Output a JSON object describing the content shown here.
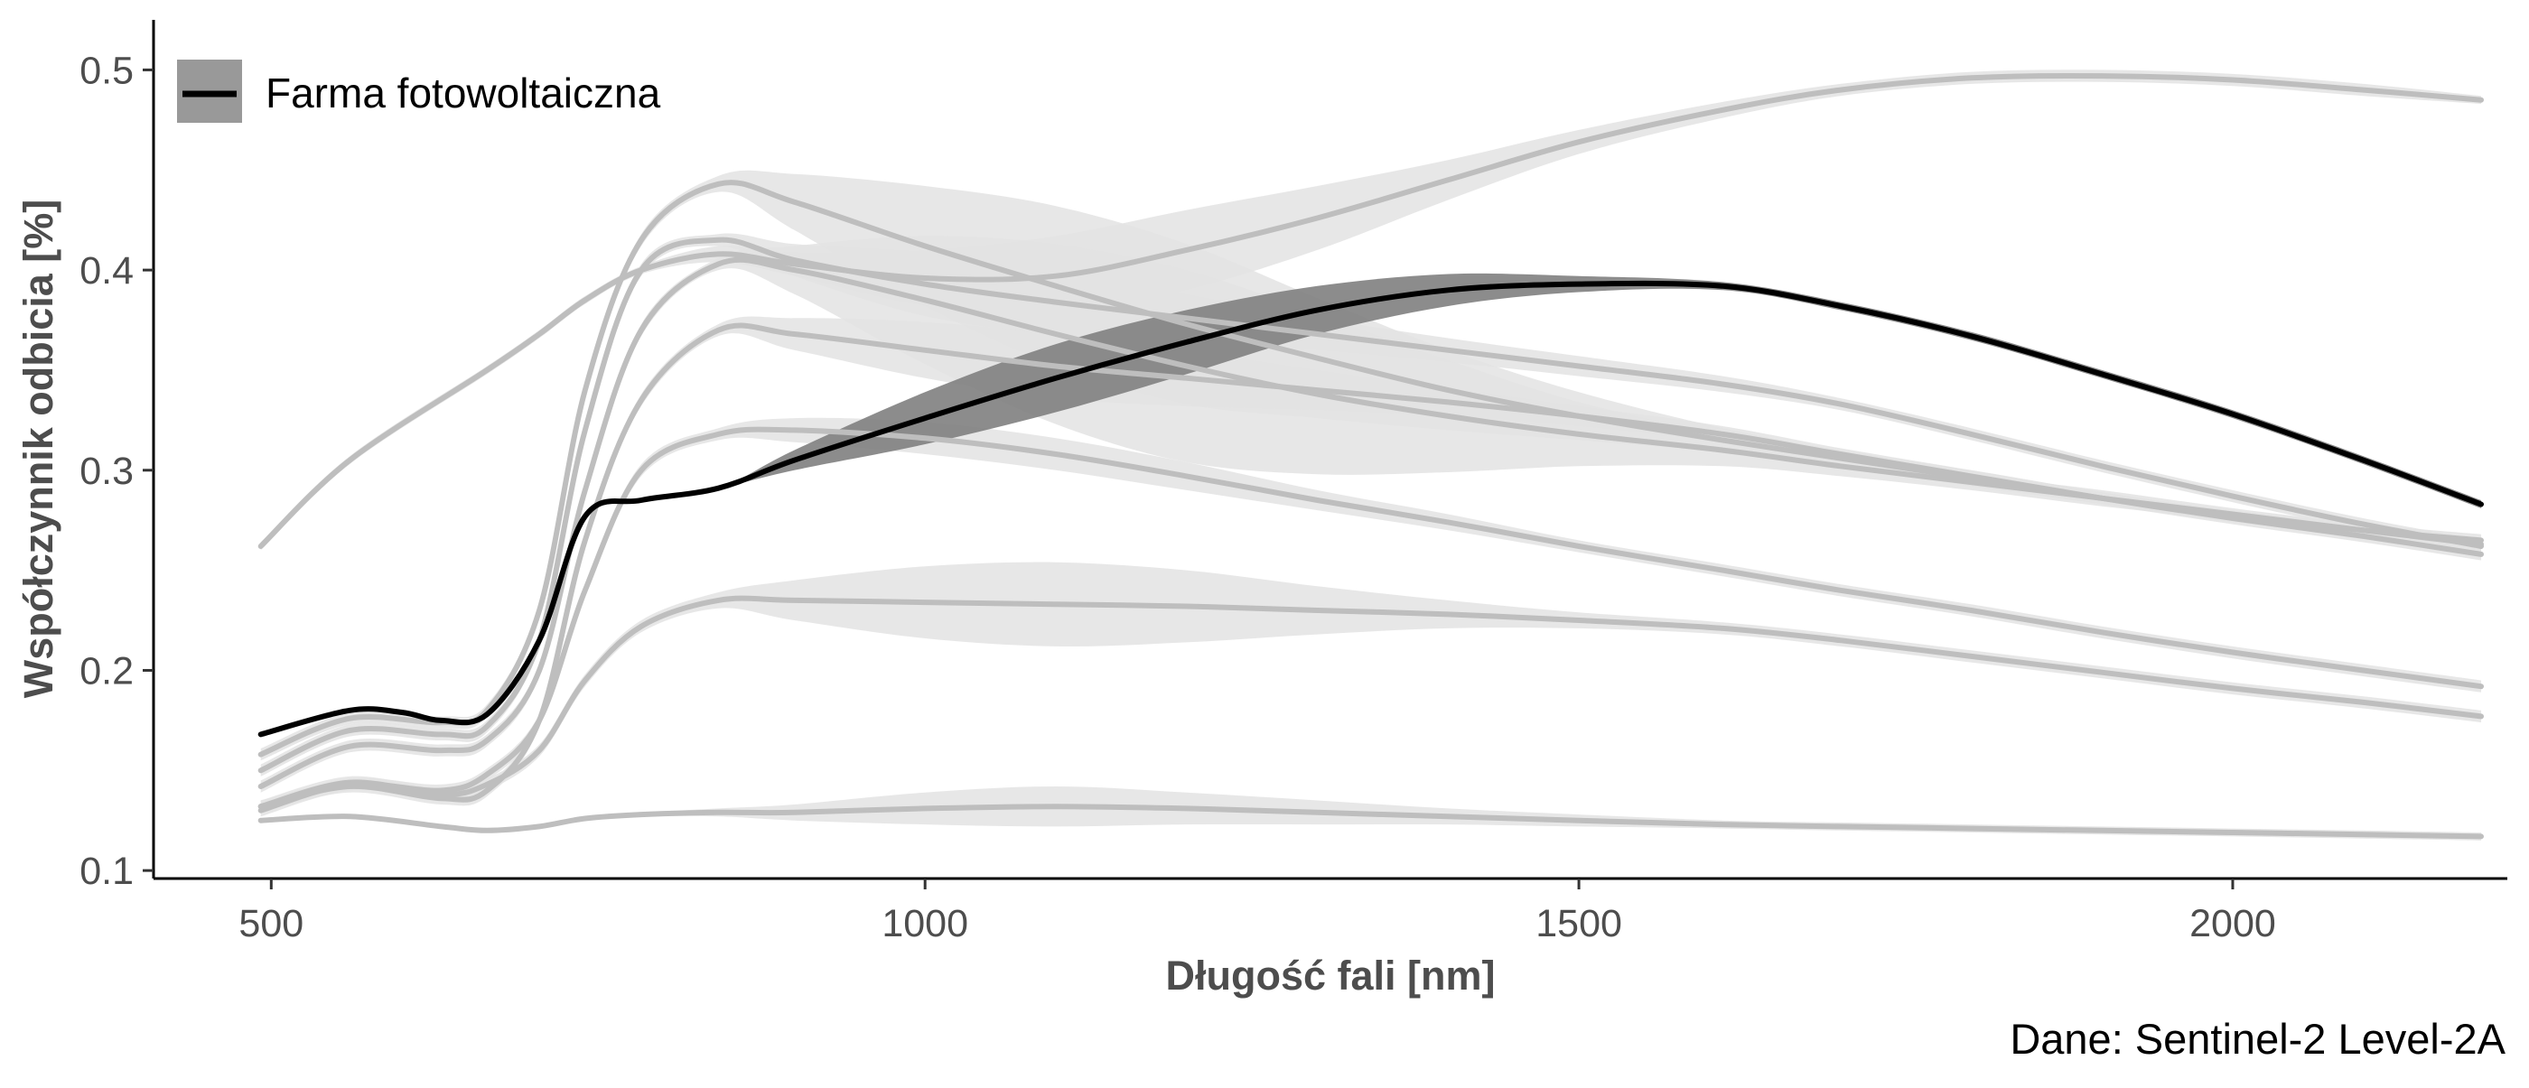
{
  "chart_data": {
    "type": "line",
    "title": "",
    "xlabel": "Długość fali [nm]",
    "ylabel": "Współczynnik odbicia [%]",
    "caption": "Dane: Sentinel-2 Level-2A",
    "xlim": [
      410,
      2210
    ],
    "ylim": [
      0.096,
      0.525
    ],
    "x_ticks": [
      "500",
      "1000",
      "1500",
      "2000"
    ],
    "y_ticks": [
      "0.1",
      "0.2",
      "0.3",
      "0.4",
      "0.5"
    ],
    "grid": false,
    "legend_position": "top-left",
    "colors": {
      "highlight_line": "#000000",
      "highlight_band": "#7f7f7f",
      "other_line": "#bebebe",
      "other_band": "#e3e3e3",
      "legend_key_fill": "#999999"
    },
    "series": [
      {
        "name": "Farma fotowoltaiczna",
        "highlight": true,
        "x": [
          492,
          560,
          600,
          630,
          665,
          705,
          740,
          783,
          842,
          900,
          1000,
          1100,
          1200,
          1300,
          1400,
          1500,
          1610,
          1700,
          1800,
          1900,
          2000,
          2100,
          2190
        ],
        "values": [
          0.168,
          0.18,
          0.179,
          0.175,
          0.178,
          0.215,
          0.277,
          0.285,
          0.291,
          0.305,
          0.326,
          0.346,
          0.364,
          0.38,
          0.39,
          0.393,
          0.392,
          0.382,
          0.367,
          0.348,
          0.328,
          0.305,
          0.283
        ],
        "band_half_width": [
          0.0,
          0.0,
          0.0,
          0.0,
          0.0,
          0.0,
          0.0,
          0.0,
          0.0,
          0.005,
          0.013,
          0.017,
          0.016,
          0.012,
          0.008,
          0.004,
          0.002,
          0.002,
          0.002,
          0.002,
          0.002,
          0.002,
          0.002
        ]
      },
      {
        "highlight": false,
        "x": [
          492,
          560,
          665,
          705,
          740,
          783,
          842,
          900,
          1000,
          1100,
          1200,
          1300,
          1400,
          1500,
          1610,
          1700,
          1800,
          1900,
          2000,
          2100,
          2190
        ],
        "values": [
          0.262,
          0.305,
          0.35,
          0.368,
          0.385,
          0.4,
          0.408,
          0.403,
          0.396,
          0.397,
          0.41,
          0.426,
          0.445,
          0.464,
          0.48,
          0.49,
          0.496,
          0.497,
          0.495,
          0.49,
          0.485
        ],
        "band_half_width": [
          0.002,
          0.002,
          0.002,
          0.002,
          0.002,
          0.002,
          0.004,
          0.006,
          0.014,
          0.02,
          0.02,
          0.016,
          0.01,
          0.006,
          0.004,
          0.003,
          0.003,
          0.003,
          0.003,
          0.003,
          0.002
        ]
      },
      {
        "highlight": false,
        "x": [
          492,
          560,
          630,
          665,
          705,
          740,
          783,
          842,
          900,
          1000,
          1100,
          1200,
          1300,
          1400,
          1500,
          1610,
          1700,
          1800,
          1900,
          2000,
          2100,
          2190
        ],
        "values": [
          0.158,
          0.176,
          0.174,
          0.18,
          0.23,
          0.34,
          0.415,
          0.443,
          0.434,
          0.412,
          0.392,
          0.373,
          0.356,
          0.34,
          0.327,
          0.315,
          0.306,
          0.296,
          0.286,
          0.277,
          0.27,
          0.265
        ],
        "band_half_width": [
          0.003,
          0.003,
          0.003,
          0.003,
          0.003,
          0.003,
          0.003,
          0.004,
          0.014,
          0.03,
          0.04,
          0.04,
          0.03,
          0.02,
          0.012,
          0.006,
          0.004,
          0.004,
          0.003,
          0.003,
          0.003,
          0.003
        ]
      },
      {
        "highlight": false,
        "x": [
          492,
          560,
          630,
          665,
          705,
          740,
          783,
          842,
          900,
          1000,
          1100,
          1200,
          1300,
          1400,
          1500,
          1610,
          1700,
          1800,
          1900,
          2000,
          2100,
          2190
        ],
        "values": [
          0.15,
          0.17,
          0.168,
          0.172,
          0.215,
          0.32,
          0.4,
          0.415,
          0.405,
          0.393,
          0.384,
          0.376,
          0.368,
          0.36,
          0.352,
          0.343,
          0.333,
          0.318,
          0.302,
          0.287,
          0.273,
          0.262
        ],
        "band_half_width": [
          0.003,
          0.003,
          0.003,
          0.003,
          0.003,
          0.003,
          0.003,
          0.003,
          0.008,
          0.016,
          0.016,
          0.012,
          0.008,
          0.006,
          0.005,
          0.004,
          0.003,
          0.003,
          0.003,
          0.003,
          0.003,
          0.003
        ]
      },
      {
        "highlight": false,
        "x": [
          492,
          560,
          630,
          665,
          705,
          740,
          783,
          842,
          900,
          1000,
          1100,
          1200,
          1300,
          1400,
          1500,
          1610,
          1700,
          1800,
          1900,
          2000,
          2100,
          2190
        ],
        "values": [
          0.142,
          0.162,
          0.16,
          0.165,
          0.2,
          0.29,
          0.37,
          0.403,
          0.4,
          0.385,
          0.368,
          0.352,
          0.338,
          0.327,
          0.318,
          0.31,
          0.302,
          0.294,
          0.286,
          0.278,
          0.27,
          0.263
        ],
        "band_half_width": [
          0.003,
          0.003,
          0.003,
          0.003,
          0.003,
          0.003,
          0.003,
          0.003,
          0.012,
          0.032,
          0.045,
          0.048,
          0.04,
          0.028,
          0.016,
          0.008,
          0.005,
          0.004,
          0.004,
          0.003,
          0.003,
          0.003
        ]
      },
      {
        "highlight": false,
        "x": [
          492,
          560,
          630,
          665,
          705,
          740,
          783,
          842,
          900,
          1000,
          1100,
          1200,
          1300,
          1400,
          1500,
          1610,
          1700,
          1800,
          1900,
          2000,
          2100,
          2190
        ],
        "values": [
          0.132,
          0.142,
          0.136,
          0.14,
          0.175,
          0.265,
          0.335,
          0.37,
          0.368,
          0.36,
          0.352,
          0.346,
          0.34,
          0.334,
          0.327,
          0.318,
          0.308,
          0.297,
          0.286,
          0.276,
          0.267,
          0.258
        ],
        "band_half_width": [
          0.003,
          0.003,
          0.003,
          0.003,
          0.003,
          0.003,
          0.003,
          0.003,
          0.008,
          0.014,
          0.016,
          0.014,
          0.01,
          0.007,
          0.005,
          0.004,
          0.003,
          0.003,
          0.003,
          0.003,
          0.003,
          0.003
        ]
      },
      {
        "highlight": false,
        "x": [
          492,
          560,
          630,
          665,
          705,
          740,
          783,
          842,
          900,
          1000,
          1100,
          1200,
          1300,
          1400,
          1500,
          1610,
          1700,
          1800,
          1900,
          2000,
          2100,
          2190
        ],
        "values": [
          0.13,
          0.143,
          0.14,
          0.148,
          0.175,
          0.24,
          0.3,
          0.318,
          0.32,
          0.316,
          0.308,
          0.297,
          0.285,
          0.274,
          0.262,
          0.25,
          0.24,
          0.23,
          0.219,
          0.209,
          0.2,
          0.192
        ],
        "band_half_width": [
          0.003,
          0.003,
          0.003,
          0.003,
          0.003,
          0.003,
          0.003,
          0.003,
          0.006,
          0.008,
          0.008,
          0.007,
          0.005,
          0.004,
          0.003,
          0.003,
          0.003,
          0.003,
          0.003,
          0.003,
          0.003,
          0.003
        ]
      },
      {
        "highlight": false,
        "x": [
          492,
          560,
          630,
          665,
          705,
          740,
          783,
          842,
          900,
          1000,
          1100,
          1200,
          1300,
          1400,
          1500,
          1610,
          1700,
          1800,
          1900,
          2000,
          2100,
          2190
        ],
        "values": [
          0.132,
          0.144,
          0.138,
          0.143,
          0.16,
          0.195,
          0.222,
          0.235,
          0.235,
          0.234,
          0.233,
          0.232,
          0.23,
          0.228,
          0.225,
          0.221,
          0.215,
          0.207,
          0.199,
          0.191,
          0.184,
          0.177
        ],
        "band_half_width": [
          0.003,
          0.003,
          0.003,
          0.003,
          0.003,
          0.003,
          0.003,
          0.004,
          0.01,
          0.018,
          0.021,
          0.018,
          0.012,
          0.007,
          0.004,
          0.003,
          0.003,
          0.003,
          0.003,
          0.003,
          0.003,
          0.003
        ]
      },
      {
        "highlight": false,
        "x": [
          492,
          560,
          630,
          665,
          705,
          740,
          783,
          842,
          900,
          1000,
          1100,
          1200,
          1300,
          1400,
          1500,
          1610,
          1700,
          1800,
          1900,
          2000,
          2100,
          2190
        ],
        "values": [
          0.125,
          0.127,
          0.122,
          0.12,
          0.122,
          0.126,
          0.128,
          0.129,
          0.129,
          0.131,
          0.132,
          0.131,
          0.129,
          0.127,
          0.125,
          0.123,
          0.122,
          0.121,
          0.12,
          0.119,
          0.118,
          0.117
        ],
        "band_half_width": [
          0.001,
          0.001,
          0.001,
          0.001,
          0.001,
          0.001,
          0.001,
          0.002,
          0.004,
          0.008,
          0.01,
          0.008,
          0.006,
          0.004,
          0.003,
          0.002,
          0.002,
          0.002,
          0.002,
          0.002,
          0.002,
          0.002
        ]
      }
    ]
  }
}
